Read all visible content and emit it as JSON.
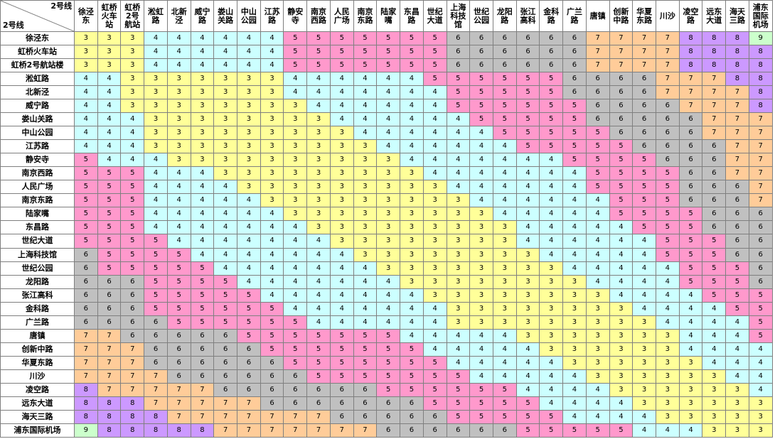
{
  "corner": {
    "col_label": "2号线",
    "row_label": "2号线"
  },
  "stations": [
    "徐泾东",
    "虹桥火车站",
    "虹桥2号航站楼",
    "淞虹路",
    "北新泾",
    "威宁路",
    "娄山关路",
    "中山公园",
    "江苏路",
    "静安寺",
    "南京西路",
    "人民广场",
    "南京东路",
    "陆家嘴",
    "东昌路",
    "世纪大道",
    "上海科技馆",
    "世纪公园",
    "龙阳路",
    "张江高科",
    "金科路",
    "广兰路",
    "唐镇",
    "创新中路",
    "华夏东路",
    "川沙",
    "凌空路",
    "远东大道",
    "海天三路",
    "浦东国际机场"
  ],
  "column_headers": [
    "徐泾\n东",
    "虹桥\n火车\n站",
    "虹桥\n2号\n航站",
    "淞虹\n路",
    "北新\n泾",
    "威宁\n路",
    "娄山\n关路",
    "中山\n公园",
    "江苏\n路",
    "静安\n寺",
    "南京\n西路",
    "人民\n广场",
    "南京\n东路",
    "陆家\n嘴",
    "东昌\n路",
    "世纪\n大道",
    "上海\n科技\n馆",
    "世纪\n公园",
    "龙阳\n路",
    "张江\n高科",
    "金科\n路",
    "广兰\n路",
    "唐镇",
    "创新\n中路",
    "华夏\n东路",
    "川沙",
    "凌空\n路",
    "远东\n大道",
    "海天\n三路",
    "浦东\n国际\n机场"
  ],
  "fare_colors": {
    "3": "#ffff99",
    "4": "#ccffff",
    "5": "#ff99cc",
    "6": "#c0c0c0",
    "7": "#ffcc99",
    "8": "#cc99ff",
    "9": "#ccffcc"
  },
  "fares": [
    [
      3,
      3,
      3,
      4,
      4,
      4,
      4,
      4,
      4,
      5,
      5,
      5,
      5,
      5,
      5,
      5,
      6,
      6,
      6,
      6,
      6,
      6,
      7,
      7,
      7,
      7,
      8,
      8,
      8,
      9
    ],
    [
      3,
      3,
      3,
      4,
      4,
      4,
      4,
      4,
      4,
      5,
      5,
      5,
      5,
      5,
      5,
      5,
      6,
      6,
      6,
      6,
      6,
      6,
      7,
      7,
      7,
      7,
      8,
      8,
      8,
      8
    ],
    [
      3,
      3,
      3,
      4,
      4,
      4,
      4,
      4,
      4,
      5,
      5,
      5,
      5,
      5,
      5,
      5,
      6,
      6,
      6,
      6,
      6,
      6,
      7,
      7,
      7,
      7,
      8,
      8,
      8,
      8
    ],
    [
      4,
      4,
      3,
      3,
      3,
      3,
      3,
      3,
      3,
      4,
      4,
      4,
      4,
      4,
      4,
      5,
      5,
      5,
      5,
      5,
      5,
      6,
      6,
      6,
      6,
      7,
      7,
      7,
      8,
      8
    ],
    [
      4,
      4,
      3,
      3,
      3,
      3,
      3,
      3,
      3,
      4,
      4,
      4,
      4,
      4,
      4,
      4,
      5,
      5,
      5,
      5,
      5,
      6,
      6,
      6,
      6,
      7,
      7,
      7,
      7,
      8
    ],
    [
      4,
      4,
      3,
      3,
      3,
      3,
      3,
      3,
      3,
      3,
      4,
      4,
      4,
      4,
      4,
      4,
      5,
      5,
      5,
      5,
      5,
      5,
      6,
      6,
      6,
      6,
      7,
      7,
      7,
      8
    ],
    [
      4,
      4,
      4,
      3,
      3,
      3,
      3,
      3,
      3,
      3,
      3,
      4,
      4,
      4,
      4,
      4,
      4,
      5,
      5,
      5,
      5,
      5,
      6,
      6,
      6,
      6,
      6,
      7,
      7,
      7
    ],
    [
      4,
      4,
      4,
      3,
      3,
      3,
      3,
      3,
      3,
      3,
      3,
      3,
      4,
      4,
      4,
      4,
      4,
      4,
      5,
      5,
      5,
      5,
      5,
      6,
      6,
      6,
      6,
      7,
      7,
      7
    ],
    [
      4,
      4,
      4,
      3,
      3,
      3,
      3,
      3,
      3,
      3,
      3,
      3,
      3,
      4,
      4,
      4,
      4,
      4,
      4,
      5,
      5,
      5,
      5,
      5,
      6,
      6,
      6,
      6,
      7,
      7
    ],
    [
      5,
      4,
      4,
      4,
      3,
      3,
      3,
      3,
      3,
      3,
      3,
      3,
      3,
      3,
      4,
      4,
      4,
      4,
      4,
      4,
      4,
      5,
      5,
      5,
      5,
      6,
      6,
      6,
      7,
      7
    ],
    [
      5,
      5,
      5,
      4,
      4,
      4,
      3,
      3,
      3,
      3,
      3,
      3,
      3,
      3,
      3,
      4,
      4,
      4,
      4,
      4,
      4,
      4,
      5,
      5,
      5,
      5,
      6,
      6,
      7,
      7
    ],
    [
      5,
      5,
      5,
      4,
      4,
      4,
      4,
      3,
      3,
      3,
      3,
      3,
      3,
      3,
      3,
      3,
      4,
      4,
      4,
      4,
      4,
      4,
      5,
      5,
      5,
      5,
      6,
      6,
      6,
      7
    ],
    [
      5,
      5,
      5,
      4,
      4,
      4,
      4,
      4,
      3,
      3,
      3,
      3,
      3,
      3,
      3,
      3,
      3,
      4,
      4,
      4,
      4,
      4,
      4,
      5,
      5,
      5,
      6,
      6,
      6,
      7
    ],
    [
      5,
      5,
      5,
      4,
      4,
      4,
      4,
      4,
      4,
      3,
      3,
      3,
      3,
      3,
      3,
      3,
      3,
      3,
      4,
      4,
      4,
      4,
      4,
      5,
      5,
      5,
      5,
      6,
      6,
      6
    ],
    [
      5,
      5,
      5,
      4,
      4,
      4,
      4,
      4,
      4,
      4,
      3,
      3,
      3,
      3,
      3,
      3,
      3,
      3,
      3,
      4,
      4,
      4,
      4,
      4,
      5,
      5,
      5,
      6,
      6,
      6
    ],
    [
      5,
      5,
      5,
      5,
      4,
      4,
      4,
      4,
      4,
      4,
      4,
      3,
      3,
      3,
      3,
      3,
      3,
      3,
      3,
      4,
      4,
      4,
      4,
      4,
      4,
      5,
      5,
      5,
      6,
      6
    ],
    [
      6,
      5,
      5,
      5,
      5,
      4,
      4,
      4,
      4,
      4,
      4,
      4,
      3,
      3,
      3,
      3,
      3,
      3,
      3,
      3,
      4,
      4,
      4,
      4,
      4,
      5,
      5,
      5,
      6,
      6
    ],
    [
      6,
      5,
      5,
      5,
      5,
      5,
      4,
      4,
      4,
      4,
      4,
      4,
      4,
      3,
      3,
      3,
      3,
      3,
      3,
      3,
      3,
      4,
      4,
      4,
      4,
      4,
      5,
      5,
      5,
      6
    ],
    [
      6,
      6,
      6,
      5,
      5,
      5,
      5,
      4,
      4,
      4,
      4,
      4,
      4,
      4,
      3,
      3,
      3,
      3,
      3,
      3,
      3,
      3,
      4,
      4,
      4,
      4,
      5,
      5,
      5,
      6
    ],
    [
      6,
      6,
      6,
      5,
      5,
      5,
      5,
      5,
      4,
      4,
      4,
      4,
      4,
      4,
      4,
      3,
      3,
      3,
      3,
      3,
      3,
      3,
      3,
      4,
      4,
      4,
      4,
      5,
      5,
      5
    ],
    [
      6,
      6,
      6,
      5,
      5,
      5,
      5,
      5,
      5,
      4,
      4,
      4,
      4,
      4,
      4,
      4,
      3,
      3,
      3,
      3,
      3,
      3,
      3,
      3,
      4,
      4,
      4,
      4,
      5,
      5
    ],
    [
      6,
      6,
      6,
      6,
      5,
      5,
      5,
      5,
      5,
      5,
      4,
      4,
      4,
      4,
      4,
      4,
      3,
      3,
      3,
      3,
      3,
      3,
      3,
      3,
      3,
      4,
      4,
      4,
      4,
      5
    ],
    [
      7,
      7,
      6,
      6,
      6,
      6,
      6,
      5,
      5,
      5,
      5,
      5,
      5,
      5,
      4,
      4,
      4,
      4,
      4,
      3,
      3,
      3,
      3,
      3,
      3,
      3,
      4,
      4,
      4,
      5
    ],
    [
      7,
      7,
      7,
      6,
      6,
      6,
      6,
      6,
      5,
      5,
      5,
      5,
      5,
      5,
      5,
      4,
      4,
      4,
      4,
      4,
      3,
      3,
      3,
      3,
      3,
      3,
      4,
      4,
      4,
      4
    ],
    [
      7,
      7,
      7,
      6,
      6,
      6,
      6,
      6,
      6,
      5,
      5,
      5,
      5,
      5,
      5,
      5,
      4,
      4,
      4,
      4,
      4,
      3,
      3,
      3,
      3,
      3,
      3,
      4,
      4,
      4
    ],
    [
      7,
      7,
      7,
      7,
      6,
      6,
      6,
      6,
      6,
      6,
      5,
      5,
      5,
      5,
      5,
      5,
      5,
      4,
      4,
      4,
      4,
      4,
      3,
      3,
      3,
      3,
      3,
      3,
      4,
      4
    ],
    [
      8,
      7,
      7,
      7,
      7,
      7,
      6,
      6,
      6,
      6,
      6,
      6,
      6,
      5,
      5,
      5,
      5,
      5,
      5,
      4,
      4,
      4,
      4,
      3,
      3,
      3,
      3,
      3,
      3,
      4
    ],
    [
      8,
      8,
      8,
      7,
      7,
      7,
      7,
      7,
      6,
      6,
      6,
      6,
      6,
      6,
      6,
      5,
      5,
      5,
      5,
      5,
      4,
      4,
      4,
      4,
      3,
      3,
      3,
      3,
      3,
      3
    ],
    [
      8,
      8,
      8,
      8,
      7,
      7,
      7,
      7,
      7,
      7,
      7,
      6,
      6,
      6,
      6,
      6,
      5,
      5,
      5,
      5,
      5,
      4,
      4,
      4,
      4,
      3,
      3,
      3,
      3,
      3
    ],
    [
      9,
      8,
      8,
      8,
      8,
      8,
      7,
      7,
      7,
      7,
      7,
      7,
      7,
      6,
      6,
      6,
      6,
      6,
      6,
      5,
      5,
      5,
      5,
      5,
      4,
      4,
      4,
      3,
      3,
      3
    ]
  ]
}
